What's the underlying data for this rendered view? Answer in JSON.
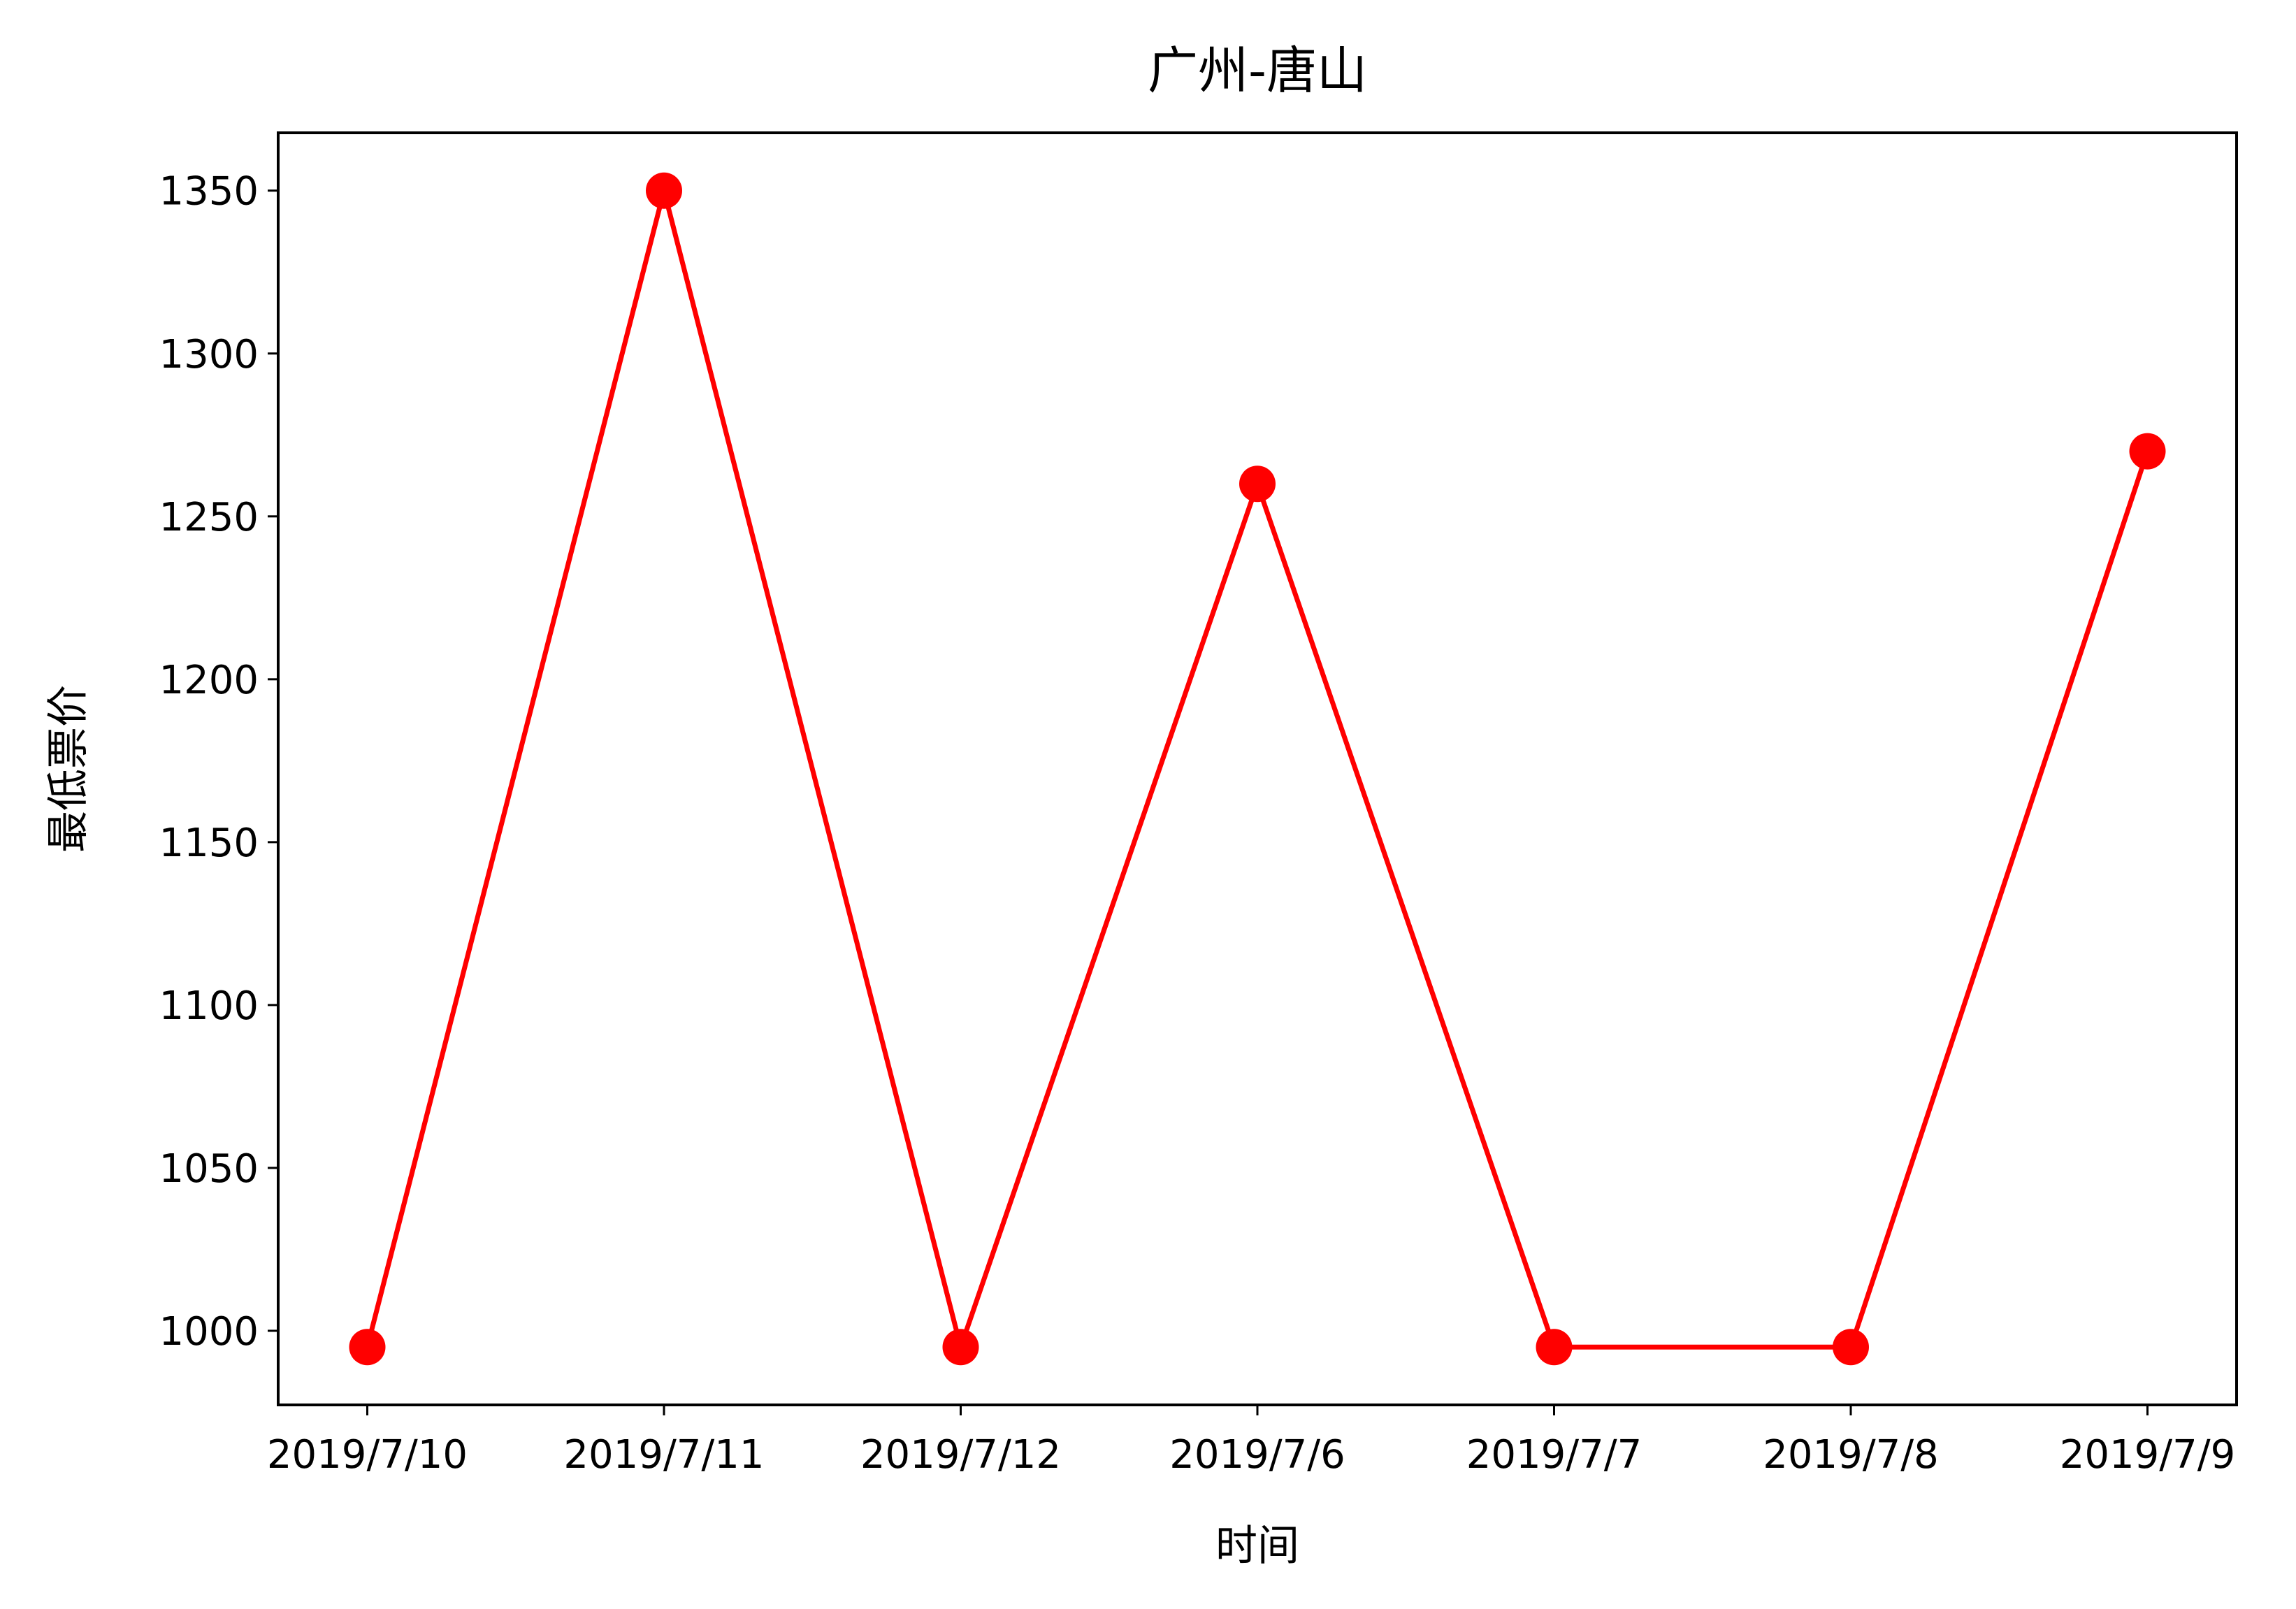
{
  "chart_data": {
    "type": "line",
    "title": "广州-唐山",
    "xlabel": "时间",
    "ylabel": "最低票价",
    "categories": [
      "2019/7/10",
      "2019/7/11",
      "2019/7/12",
      "2019/7/6",
      "2019/7/7",
      "2019/7/8",
      "2019/7/9"
    ],
    "series": [
      {
        "values": [
          995,
          1350,
          995,
          1260,
          995,
          995,
          1270
        ],
        "color": "#ff0000",
        "marker": "circle"
      }
    ],
    "ylim": [
      977.25,
      1367.75
    ],
    "yticks": [
      1000,
      1050,
      1100,
      1150,
      1200,
      1250,
      1300,
      1350
    ],
    "grid": false,
    "legend": "none"
  }
}
